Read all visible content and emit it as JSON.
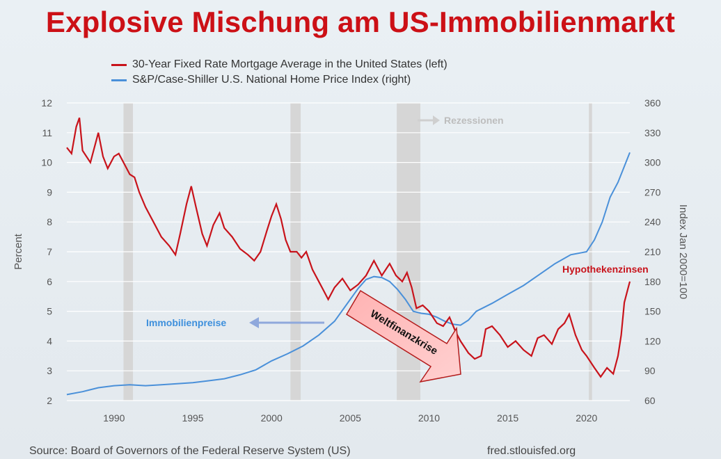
{
  "title": "Explosive Mischung am US-Immobilienmarkt",
  "legend": [
    {
      "label": "30-Year Fixed Rate Mortgage Average in the United States (left)",
      "color": "#c8131b"
    },
    {
      "label": "S&P/Case-Shiller U.S. National Home Price Index (right)",
      "color": "#4a90d9"
    }
  ],
  "source": "Source: Board of Governors of the Federal Reserve System (US)",
  "site": "fred.stlouisfed.org",
  "annotations": {
    "rezessionen": "Rezessionen",
    "immobilienpreise": "Immobilienpreise",
    "hypothekenzinsen": "Hypothekenzinsen",
    "weltfinanzkrise": "Weltfinanzkrise"
  },
  "chart_data": {
    "type": "line",
    "xlabel": "",
    "ylabel_left": "Percent",
    "ylabel_right": "Index Jan 2000=100",
    "xlim": [
      1987.0,
      2022.75
    ],
    "ylim_left": [
      2,
      12
    ],
    "ylim_right": [
      60,
      360
    ],
    "x_ticks": [
      "1990",
      "1995",
      "2000",
      "2005",
      "2010",
      "2015",
      "2020"
    ],
    "y_ticks_left": [
      "2",
      "3",
      "4",
      "5",
      "6",
      "7",
      "8",
      "9",
      "10",
      "11",
      "12"
    ],
    "y_ticks_right": [
      "60",
      "90",
      "120",
      "150",
      "180",
      "210",
      "240",
      "270",
      "300",
      "330",
      "360"
    ],
    "grid": true,
    "legend_position": "top-left",
    "recessions": [
      [
        1990.6,
        1991.2
      ],
      [
        2001.2,
        2001.85
      ],
      [
        2007.95,
        2009.45
      ],
      [
        2020.15,
        2020.35
      ]
    ],
    "series": [
      {
        "name": "30-Year Fixed Rate Mortgage Average in the United States (left)",
        "axis": "left",
        "color": "#c8131b",
        "x": [
          1987.0,
          1987.3,
          1987.6,
          1987.8,
          1988.0,
          1988.5,
          1989.0,
          1989.3,
          1989.6,
          1990.0,
          1990.3,
          1990.6,
          1991.0,
          1991.3,
          1991.6,
          1992.0,
          1992.5,
          1993.0,
          1993.5,
          1993.9,
          1994.2,
          1994.6,
          1994.9,
          1995.2,
          1995.6,
          1995.9,
          1996.3,
          1996.7,
          1997.0,
          1997.5,
          1998.0,
          1998.5,
          1998.9,
          1999.3,
          1999.7,
          2000.0,
          2000.3,
          2000.6,
          2000.9,
          2001.2,
          2001.6,
          2001.9,
          2002.2,
          2002.6,
          2003.0,
          2003.3,
          2003.6,
          2004.0,
          2004.5,
          2005.0,
          2005.5,
          2006.0,
          2006.5,
          2007.0,
          2007.5,
          2007.9,
          2008.3,
          2008.6,
          2008.9,
          2009.2,
          2009.6,
          2010.0,
          2010.5,
          2010.9,
          2011.3,
          2011.7,
          2012.0,
          2012.5,
          2012.9,
          2013.3,
          2013.6,
          2014.0,
          2014.5,
          2015.0,
          2015.5,
          2016.0,
          2016.5,
          2016.9,
          2017.3,
          2017.8,
          2018.2,
          2018.6,
          2018.9,
          2019.3,
          2019.7,
          2020.0,
          2020.5,
          2020.9,
          2021.3,
          2021.7,
          2022.0,
          2022.2,
          2022.4,
          2022.6,
          2022.75
        ],
        "values": [
          10.5,
          10.3,
          11.2,
          11.5,
          10.4,
          10.0,
          11.0,
          10.2,
          9.8,
          10.2,
          10.3,
          10.0,
          9.6,
          9.5,
          9.0,
          8.5,
          8.0,
          7.5,
          7.2,
          6.9,
          7.6,
          8.6,
          9.2,
          8.5,
          7.6,
          7.2,
          7.9,
          8.3,
          7.8,
          7.5,
          7.1,
          6.9,
          6.7,
          7.0,
          7.7,
          8.2,
          8.6,
          8.1,
          7.4,
          7.0,
          7.0,
          6.8,
          7.0,
          6.4,
          6.0,
          5.7,
          5.4,
          5.8,
          6.1,
          5.7,
          5.9,
          6.2,
          6.7,
          6.2,
          6.6,
          6.2,
          6.0,
          6.3,
          5.8,
          5.1,
          5.2,
          5.0,
          4.6,
          4.5,
          4.8,
          4.3,
          4.0,
          3.6,
          3.4,
          3.5,
          4.4,
          4.5,
          4.2,
          3.8,
          4.0,
          3.7,
          3.5,
          4.1,
          4.2,
          3.9,
          4.4,
          4.6,
          4.9,
          4.2,
          3.7,
          3.5,
          3.1,
          2.8,
          3.1,
          2.9,
          3.5,
          4.2,
          5.3,
          5.7,
          6.0
        ]
      },
      {
        "name": "S&P/Case-Shiller U.S. National Home Price Index (right)",
        "axis": "right",
        "color": "#4a90d9",
        "x": [
          1987.0,
          1988.0,
          1989.0,
          1990.0,
          1991.0,
          1992.0,
          1993.0,
          1994.0,
          1995.0,
          1996.0,
          1997.0,
          1998.0,
          1999.0,
          2000.0,
          2001.0,
          2002.0,
          2003.0,
          2004.0,
          2005.0,
          2005.5,
          2006.0,
          2006.5,
          2007.0,
          2007.5,
          2008.0,
          2008.5,
          2009.0,
          2009.5,
          2010.0,
          2010.5,
          2011.0,
          2011.5,
          2012.0,
          2012.5,
          2013.0,
          2014.0,
          2015.0,
          2016.0,
          2017.0,
          2018.0,
          2019.0,
          2020.0,
          2020.5,
          2021.0,
          2021.5,
          2022.0,
          2022.3,
          2022.5,
          2022.75
        ],
        "values": [
          66,
          69,
          73,
          75,
          76,
          75,
          76,
          77,
          78,
          80,
          82,
          86,
          91,
          100,
          107,
          115,
          126,
          140,
          162,
          173,
          182,
          185,
          184,
          180,
          172,
          162,
          150,
          148,
          147,
          144,
          140,
          137,
          136,
          141,
          150,
          158,
          167,
          176,
          187,
          198,
          207,
          210,
          222,
          240,
          265,
          280,
          292,
          300,
          310
        ]
      }
    ]
  }
}
